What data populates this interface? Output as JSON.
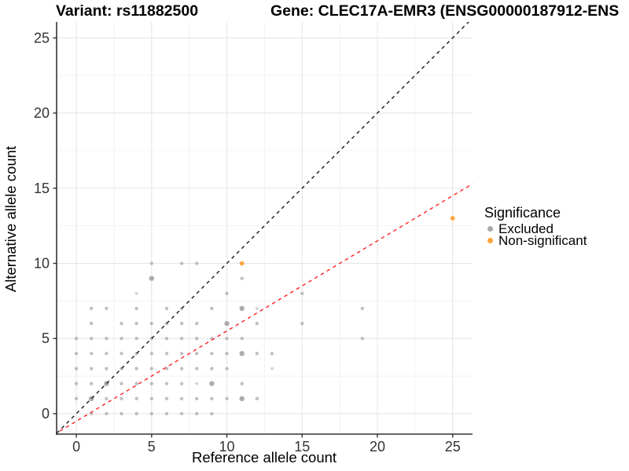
{
  "chart_data": {
    "type": "scatter",
    "title_left": "Variant: rs11882500",
    "title_right": "Gene: CLEC17A-EMR3 (ENSG00000187912-ENS",
    "xlabel": "Reference allele count",
    "ylabel": "Alternative allele count",
    "xlim": [
      -1.31,
      26.32
    ],
    "ylim": [
      -1.36,
      26.06
    ],
    "x_ticks": [
      "0",
      "5",
      "10",
      "15",
      "20",
      "25"
    ],
    "y_ticks": [
      "0",
      "5",
      "10",
      "15",
      "20",
      "25"
    ],
    "x_tick_values": [
      0,
      5,
      10,
      15,
      20,
      25
    ],
    "y_tick_values": [
      0,
      5,
      10,
      15,
      20,
      25
    ],
    "minor_tick_values": [
      2.5,
      7.5,
      12.5,
      17.5,
      22.5
    ],
    "grid": "major+minor",
    "colors": {
      "major_grid": "#E6E6E6",
      "minor_grid": "#F2F2F2",
      "axis_line": "#333333",
      "tick_label": "#333333",
      "identity_line": "#1A1A1A",
      "fit_line": "#FF2020"
    },
    "legend": {
      "title": "Significance",
      "position": "right-middle",
      "items": [
        {
          "label": "Excluded",
          "color": "#A8A8A8"
        },
        {
          "label": "Non-significant",
          "color": "#FAA43C"
        }
      ]
    },
    "series": [
      {
        "name": "Excluded",
        "color": "#A8A8A8",
        "points": [
          [
            0,
            1
          ],
          [
            0,
            2
          ],
          [
            0,
            3
          ],
          [
            0,
            4
          ],
          [
            0,
            5
          ],
          [
            1,
            0
          ],
          [
            1,
            1,
            1
          ],
          [
            1,
            2
          ],
          [
            1,
            3
          ],
          [
            1,
            4
          ],
          [
            1,
            5
          ],
          [
            1,
            6
          ],
          [
            1,
            7
          ],
          [
            2,
            0
          ],
          [
            2,
            1
          ],
          [
            2,
            2,
            1
          ],
          [
            2,
            3
          ],
          [
            2,
            4
          ],
          [
            2,
            5
          ],
          [
            2,
            7
          ],
          [
            3,
            0
          ],
          [
            3,
            1
          ],
          [
            3,
            2
          ],
          [
            3,
            3
          ],
          [
            3,
            4
          ],
          [
            3,
            5
          ],
          [
            3,
            6
          ],
          [
            4,
            0
          ],
          [
            4,
            1
          ],
          [
            4,
            2
          ],
          [
            4,
            3
          ],
          [
            4,
            4
          ],
          [
            4,
            5
          ],
          [
            4,
            6
          ],
          [
            4,
            7
          ],
          [
            4,
            8,
            2
          ],
          [
            5,
            0
          ],
          [
            5,
            1
          ],
          [
            5,
            2
          ],
          [
            5,
            3
          ],
          [
            5,
            4
          ],
          [
            5,
            5
          ],
          [
            5,
            6
          ],
          [
            5,
            9,
            1
          ],
          [
            5,
            10
          ],
          [
            6,
            0
          ],
          [
            6,
            1
          ],
          [
            6,
            2
          ],
          [
            6,
            3
          ],
          [
            6,
            4
          ],
          [
            6,
            5
          ],
          [
            6,
            6
          ],
          [
            6,
            7
          ],
          [
            7,
            0
          ],
          [
            7,
            1
          ],
          [
            7,
            2
          ],
          [
            7,
            3
          ],
          [
            7,
            4
          ],
          [
            7,
            5
          ],
          [
            7,
            6
          ],
          [
            7,
            7
          ],
          [
            7,
            10
          ],
          [
            8,
            0
          ],
          [
            8,
            1
          ],
          [
            8,
            2,
            2
          ],
          [
            8,
            3
          ],
          [
            8,
            4
          ],
          [
            8,
            5
          ],
          [
            8,
            6
          ],
          [
            8,
            10
          ],
          [
            9,
            0
          ],
          [
            9,
            1
          ],
          [
            9,
            2,
            1
          ],
          [
            9,
            3
          ],
          [
            9,
            4
          ],
          [
            9,
            5
          ],
          [
            9,
            7
          ],
          [
            10,
            1
          ],
          [
            10,
            3
          ],
          [
            10,
            4
          ],
          [
            10,
            5
          ],
          [
            10,
            6,
            1
          ],
          [
            10,
            8
          ],
          [
            11,
            1,
            1
          ],
          [
            11,
            2
          ],
          [
            11,
            4,
            1
          ],
          [
            11,
            5
          ],
          [
            11,
            7,
            1
          ],
          [
            11,
            9
          ],
          [
            12,
            1
          ],
          [
            12,
            4
          ],
          [
            12,
            6
          ],
          [
            12,
            7,
            2
          ],
          [
            13,
            3,
            2
          ],
          [
            13,
            4
          ],
          [
            15,
            6
          ],
          [
            15,
            8
          ],
          [
            19,
            5
          ],
          [
            19,
            7
          ]
        ]
      },
      {
        "name": "Non-significant",
        "color": "#FAA43C",
        "points": [
          [
            11,
            10
          ],
          [
            25,
            13
          ]
        ]
      }
    ],
    "lines": [
      {
        "name": "identity-line",
        "style": "dashed",
        "slope": 1,
        "intercept": 0,
        "color": "#1A1A1A"
      },
      {
        "name": "fit-line",
        "style": "dashed",
        "slope": 0.6,
        "intercept": -0.5,
        "color": "#FF2020"
      }
    ]
  }
}
